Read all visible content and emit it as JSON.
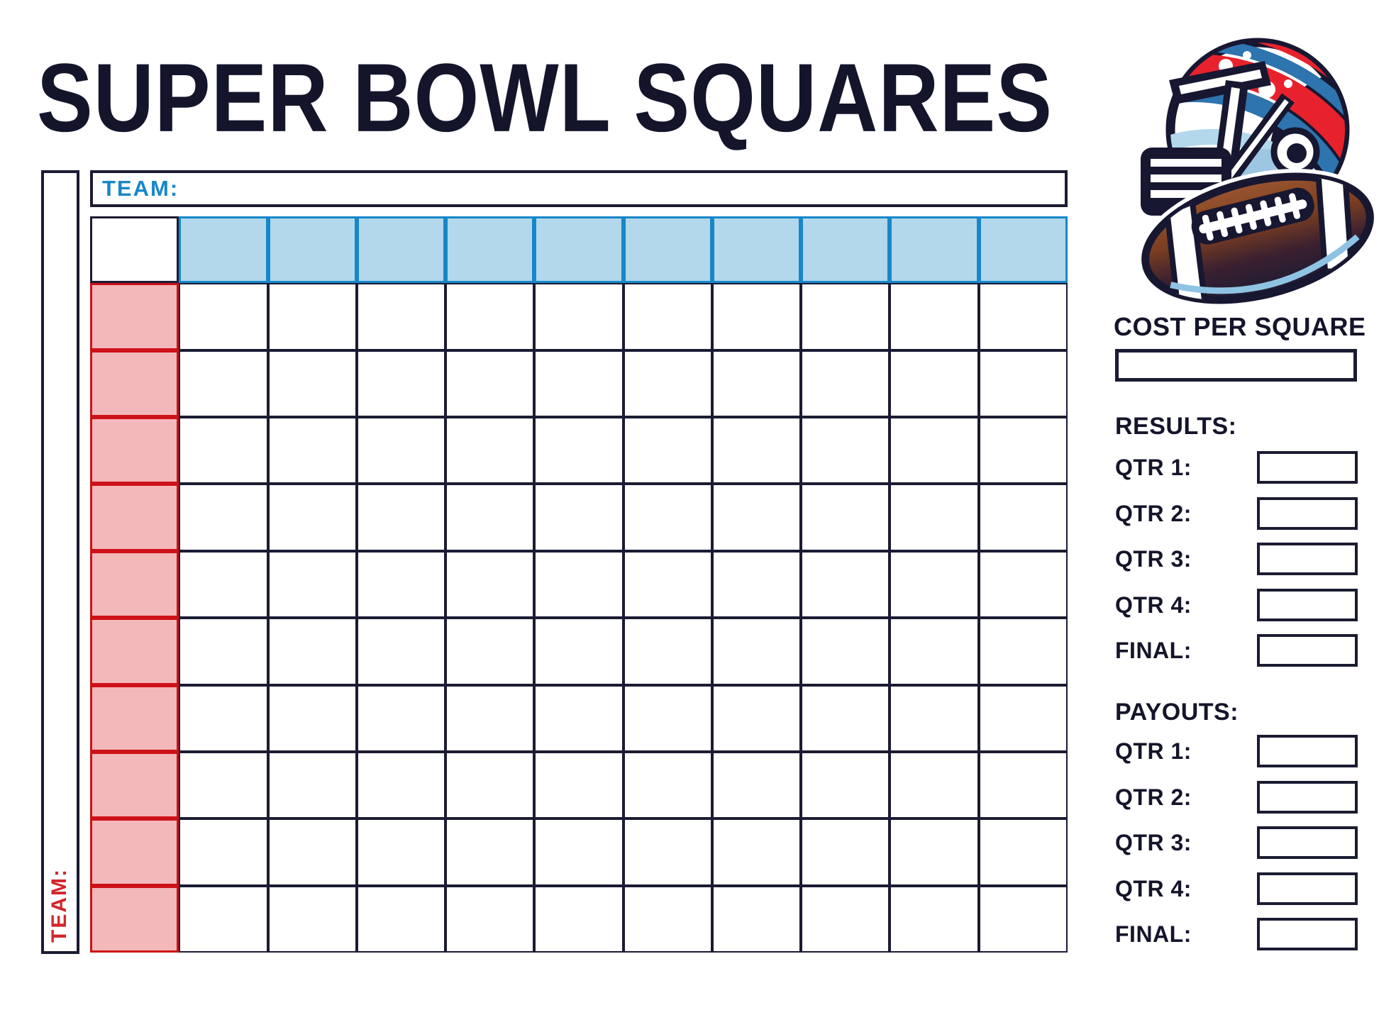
{
  "title": "SUPER BOWL SQUARES",
  "illustration": "football-helmet-and-ball",
  "board": {
    "top_team": {
      "label": "TEAM:",
      "value": ""
    },
    "left_team": {
      "label": "TEAM:",
      "value": ""
    },
    "grid": {
      "rows": 10,
      "cols": 10
    }
  },
  "sidebar": {
    "cost_per_square": {
      "label": "COST PER SQUARE",
      "value": ""
    },
    "results": {
      "heading": "RESULTS:",
      "rows": [
        {
          "label": "QTR 1:",
          "value": ""
        },
        {
          "label": "QTR 2:",
          "value": ""
        },
        {
          "label": "QTR 3:",
          "value": ""
        },
        {
          "label": "QTR 4:",
          "value": ""
        },
        {
          "label": "FINAL:",
          "value": ""
        }
      ]
    },
    "payouts": {
      "heading": "PAYOUTS:",
      "rows": [
        {
          "label": "QTR 1:",
          "value": ""
        },
        {
          "label": "QTR 2:",
          "value": ""
        },
        {
          "label": "QTR 3:",
          "value": ""
        },
        {
          "label": "QTR 4:",
          "value": ""
        },
        {
          "label": "FINAL:",
          "value": ""
        }
      ]
    }
  },
  "colors": {
    "navy": "#1b1b33",
    "title_navy": "#14152b",
    "blue": "#1787c8",
    "light_blue": "#b3d8ec",
    "red": "#cd1118",
    "red_text": "#d2262b",
    "pink": "#f2b8ba",
    "ball_brown": "#8a4a28"
  }
}
